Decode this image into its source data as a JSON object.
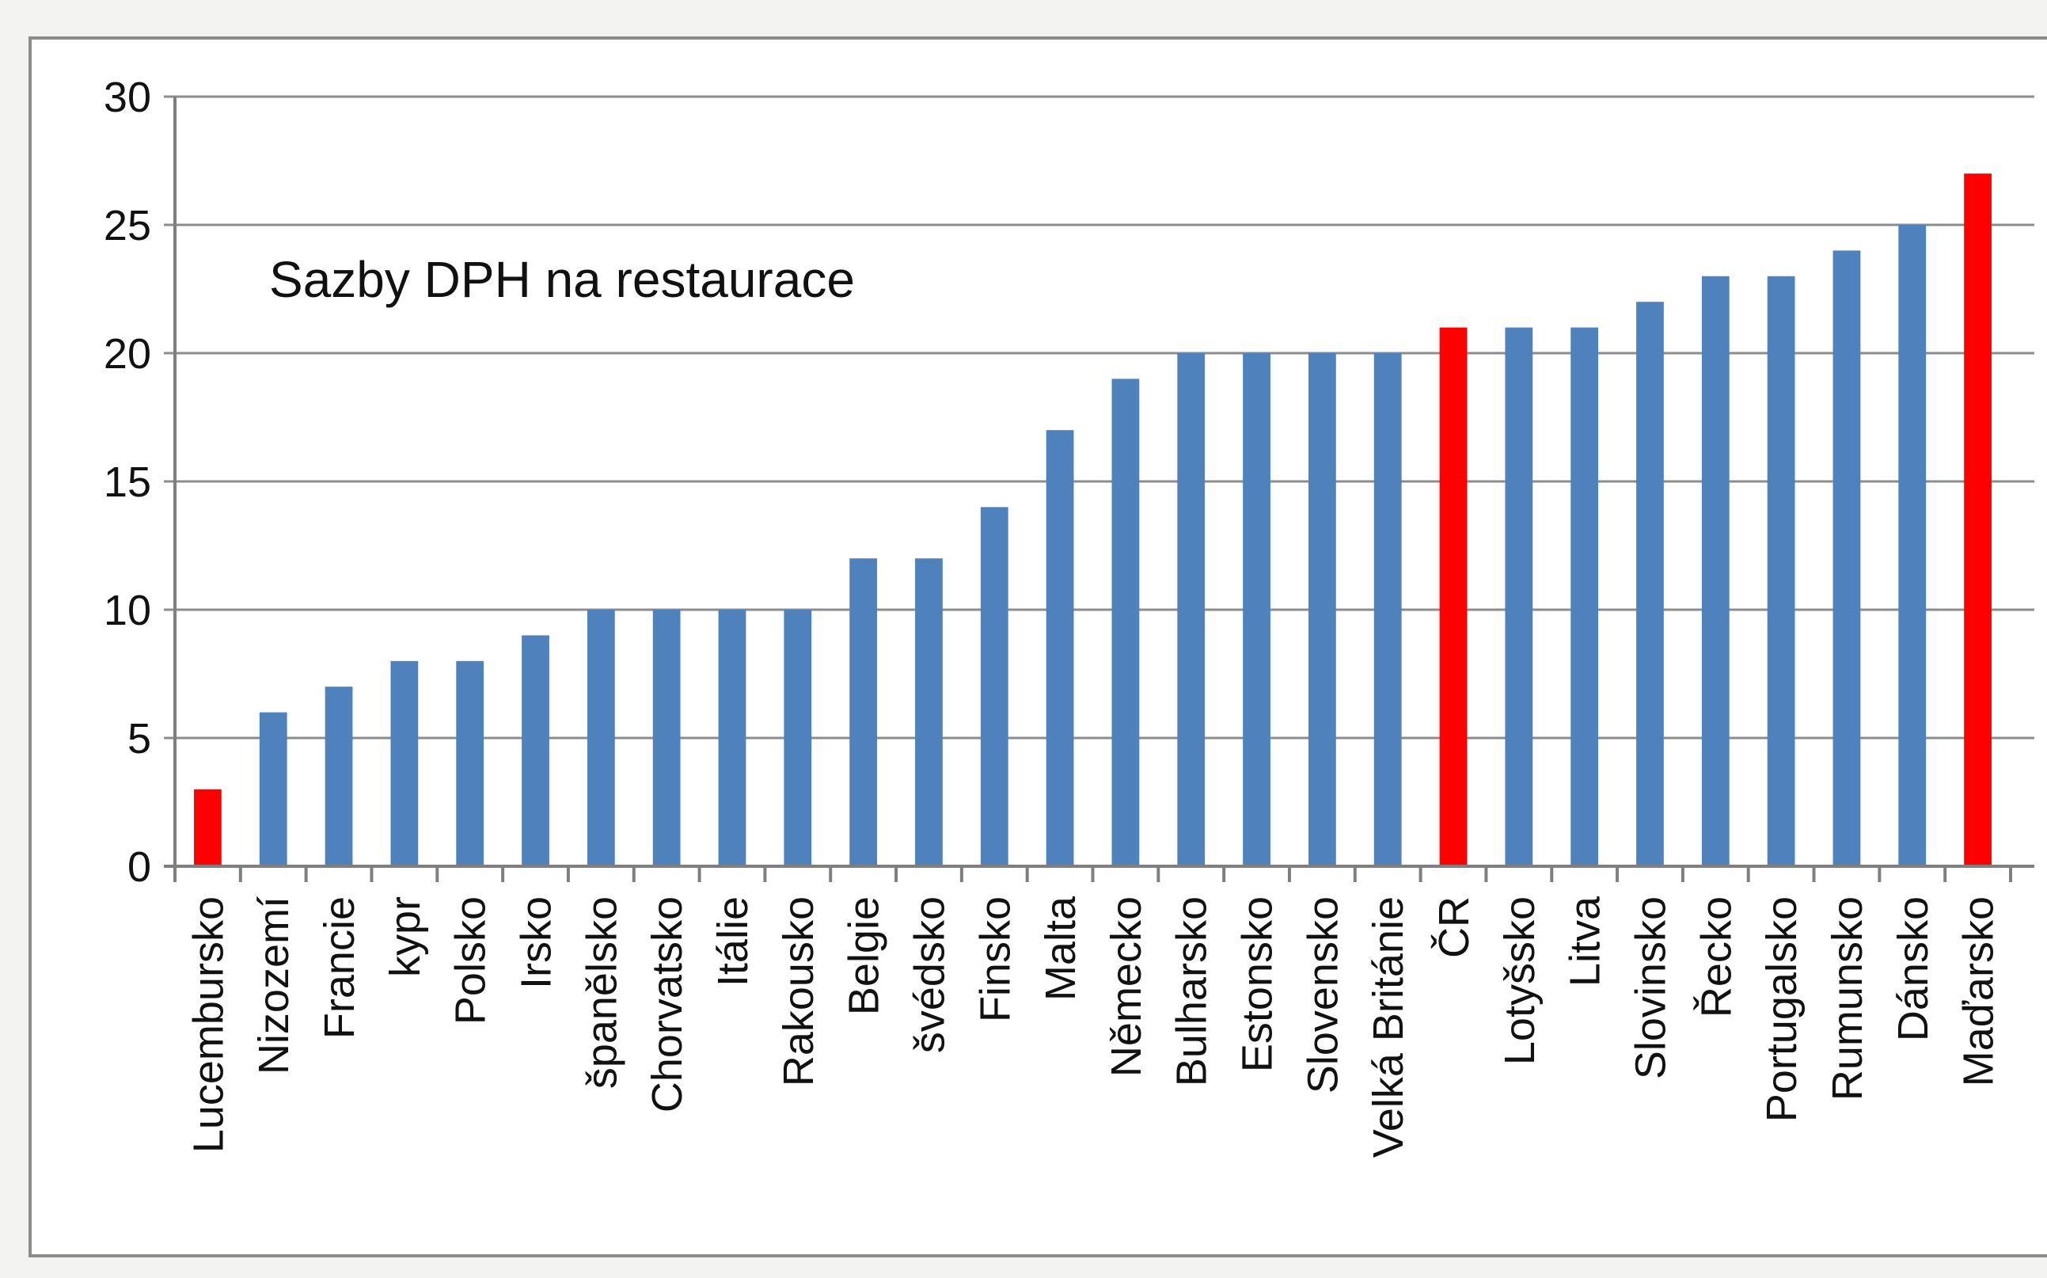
{
  "chart_data": {
    "type": "bar",
    "title": "Sazby DPH na restaurace",
    "xlabel": "",
    "ylabel": "",
    "ylim": [
      0,
      30
    ],
    "yticks": [
      0,
      5,
      10,
      15,
      20,
      25,
      30
    ],
    "grid": true,
    "legend": "none",
    "colors": {
      "default_bar": "#4f81bd",
      "highlight_bar": "#ff0000",
      "grid": "#8c8c8c",
      "axis": "#7f7f7f"
    },
    "categories": [
      "Lucembursko",
      "Nizozemí",
      "Francie",
      "kypr",
      "Polsko",
      "Irsko",
      "španělsko",
      "Chorvatsko",
      "Itálie",
      "Rakousko",
      "Belgie",
      "švédsko",
      "Finsko",
      "Malta",
      "Německo",
      "Bulharsko",
      "Estonsko",
      "Slovensko",
      "Velká Británie",
      "ČR",
      "Lotyšsko",
      "Litva",
      "Slovinsko",
      "Řecko",
      "Portugalsko",
      "Rumunsko",
      "Dánsko",
      "Maďarsko"
    ],
    "values": [
      3,
      6,
      7,
      8,
      8,
      9,
      10,
      10,
      10,
      10,
      12,
      12,
      14,
      17,
      19,
      20,
      20,
      20,
      20,
      21,
      21,
      21,
      22,
      23,
      23,
      24,
      25,
      27
    ],
    "highlighted": [
      "Lucembursko",
      "ČR",
      "Maďarsko"
    ]
  }
}
